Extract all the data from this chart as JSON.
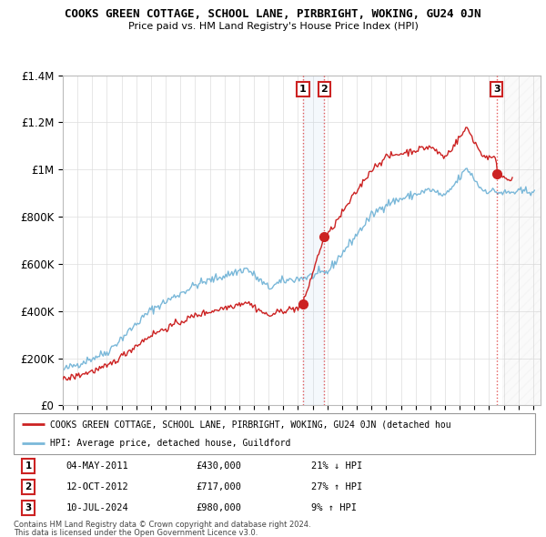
{
  "title": "COOKS GREEN COTTAGE, SCHOOL LANE, PIRBRIGHT, WOKING, GU24 0JN",
  "subtitle": "Price paid vs. HM Land Registry's House Price Index (HPI)",
  "ylim": [
    0,
    1400000
  ],
  "yticks": [
    0,
    200000,
    400000,
    600000,
    800000,
    1000000,
    1200000,
    1400000
  ],
  "ytick_labels": [
    "£0",
    "£200K",
    "£400K",
    "£600K",
    "£800K",
    "£1M",
    "£1.2M",
    "£1.4M"
  ],
  "xlim_start": 1995.0,
  "xlim_end": 2027.5,
  "hpi_color": "#7ab8d9",
  "price_color": "#cc2222",
  "transactions": [
    {
      "num": 1,
      "year": 2011.34,
      "price": 430000,
      "label": "04-MAY-2011",
      "amount": "£430,000",
      "change": "21% ↓ HPI"
    },
    {
      "num": 2,
      "year": 2012.78,
      "price": 717000,
      "label": "12-OCT-2012",
      "amount": "£717,000",
      "change": "27% ↑ HPI"
    },
    {
      "num": 3,
      "year": 2024.52,
      "price": 980000,
      "label": "10-JUL-2024",
      "amount": "£980,000",
      "change": "9% ↑ HPI"
    }
  ],
  "legend_price_label": "COOKS GREEN COTTAGE, SCHOOL LANE, PIRBRIGHT, WOKING, GU24 0JN (detached hou",
  "legend_hpi_label": "HPI: Average price, detached house, Guildford",
  "footer1": "Contains HM Land Registry data © Crown copyright and database right 2024.",
  "footer2": "This data is licensed under the Open Government Licence v3.0."
}
